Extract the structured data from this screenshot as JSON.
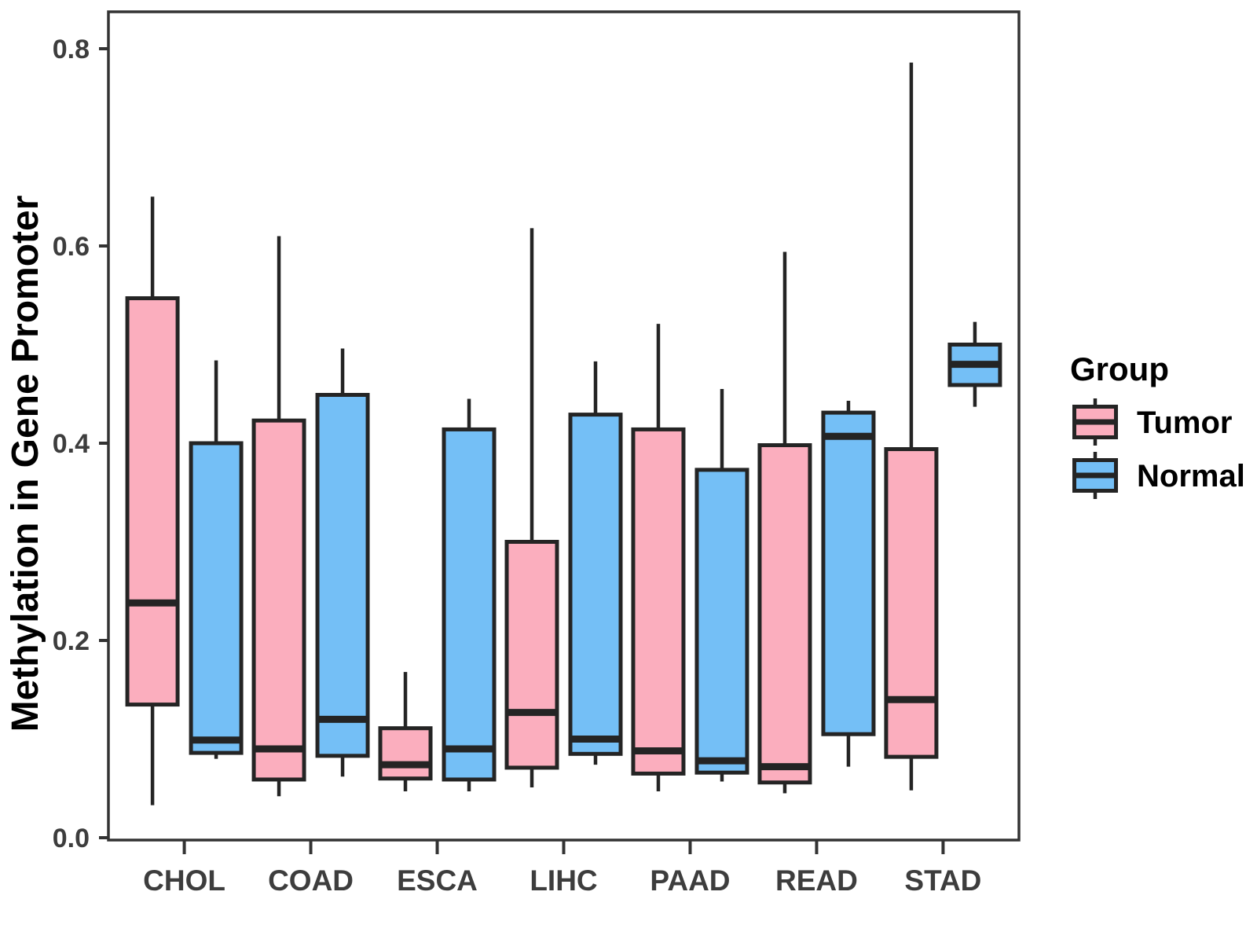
{
  "figure": {
    "background": "#FFFFFF"
  },
  "chart_data": {
    "type": "boxplot",
    "title": "",
    "xlabel": "",
    "ylabel": "Methylation in Gene Promoter",
    "categories": [
      "CHOL",
      "COAD",
      "ESCA",
      "LIHC",
      "PAAD",
      "READ",
      "STAD"
    ],
    "ylim": [
      0.0,
      0.85
    ],
    "yticks": {
      "values": [
        0.0,
        0.2,
        0.4,
        0.6,
        0.8
      ],
      "labels": [
        "0.0",
        "0.2",
        "0.4",
        "0.6",
        "0.8"
      ]
    },
    "grid": false,
    "legend": {
      "title": "Group",
      "position": "right",
      "items": [
        "Tumor",
        "Normal"
      ]
    },
    "series": [
      {
        "name": "Tumor",
        "fill": "#FBAEBE",
        "boxes": [
          {
            "category": "CHOL",
            "whisker_low": 0.033,
            "q1": 0.135,
            "median": 0.238,
            "q3": 0.547,
            "whisker_high": 0.65
          },
          {
            "category": "COAD",
            "whisker_low": 0.042,
            "q1": 0.059,
            "median": 0.09,
            "q3": 0.423,
            "whisker_high": 0.61
          },
          {
            "category": "ESCA",
            "whisker_low": 0.047,
            "q1": 0.06,
            "median": 0.074,
            "q3": 0.111,
            "whisker_high": 0.168
          },
          {
            "category": "LIHC",
            "whisker_low": 0.051,
            "q1": 0.071,
            "median": 0.127,
            "q3": 0.3,
            "whisker_high": 0.618
          },
          {
            "category": "PAAD",
            "whisker_low": 0.047,
            "q1": 0.065,
            "median": 0.088,
            "q3": 0.414,
            "whisker_high": 0.521
          },
          {
            "category": "READ",
            "whisker_low": 0.045,
            "q1": 0.056,
            "median": 0.072,
            "q3": 0.398,
            "whisker_high": 0.594
          },
          {
            "category": "STAD",
            "whisker_low": 0.048,
            "q1": 0.082,
            "median": 0.14,
            "q3": 0.394,
            "whisker_high": 0.786
          }
        ]
      },
      {
        "name": "Normal",
        "fill": "#74BFF6",
        "boxes": [
          {
            "category": "CHOL",
            "whisker_low": 0.08,
            "q1": 0.086,
            "median": 0.099,
            "q3": 0.4,
            "whisker_high": 0.484
          },
          {
            "category": "COAD",
            "whisker_low": 0.062,
            "q1": 0.083,
            "median": 0.12,
            "q3": 0.449,
            "whisker_high": 0.496
          },
          {
            "category": "ESCA",
            "whisker_low": 0.047,
            "q1": 0.059,
            "median": 0.09,
            "q3": 0.414,
            "whisker_high": 0.445
          },
          {
            "category": "LIHC",
            "whisker_low": 0.074,
            "q1": 0.085,
            "median": 0.1,
            "q3": 0.429,
            "whisker_high": 0.483
          },
          {
            "category": "PAAD",
            "whisker_low": 0.057,
            "q1": 0.066,
            "median": 0.078,
            "q3": 0.373,
            "whisker_high": 0.455
          },
          {
            "category": "READ",
            "whisker_low": 0.072,
            "q1": 0.105,
            "median": 0.407,
            "q3": 0.431,
            "whisker_high": 0.443
          },
          {
            "category": "STAD",
            "whisker_low": 0.437,
            "q1": 0.459,
            "median": 0.48,
            "q3": 0.5,
            "whisker_high": 0.523
          }
        ]
      }
    ],
    "colors": {
      "box_border": "#242424",
      "axis": "#333333",
      "tick_label": "#3D3D3D",
      "axis_title": "#000000",
      "legend_text": "#000000"
    }
  }
}
